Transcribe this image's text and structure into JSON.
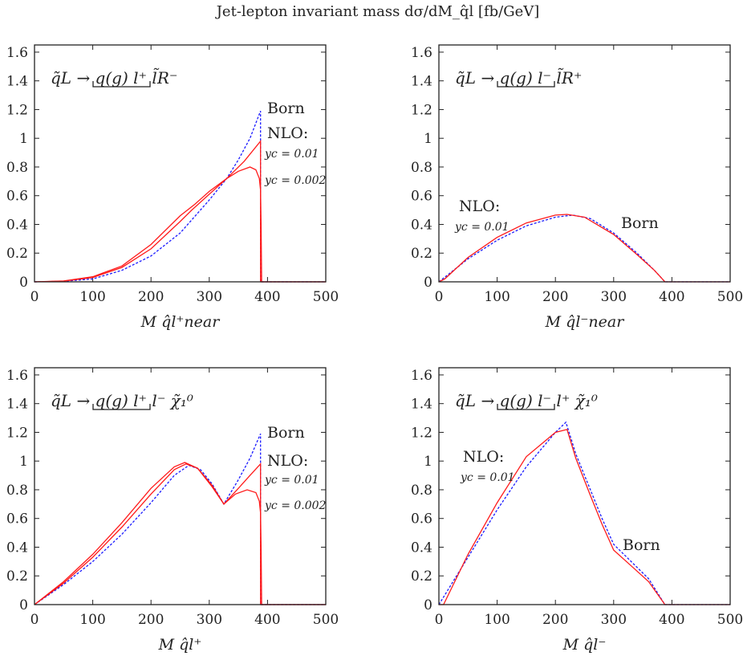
{
  "title": "Jet-lepton invariant mass dσ/dM_q̂l [fb/GeV]",
  "colors": {
    "born": "#1a1aff",
    "nlo": "#ff1a1a",
    "axis": "#222222"
  },
  "chart_data": [
    {
      "type": "line",
      "decay_label": "q̃L → q(g) l⁺ l̃R⁻",
      "xlabel": "M q̂l⁺near",
      "xlim": [
        0,
        500
      ],
      "ylim": [
        0,
        1.65
      ],
      "xticks": [
        "0",
        "100",
        "200",
        "300",
        "400",
        "500"
      ],
      "yticks": [
        "0",
        "0.2",
        "0.4",
        "0.6",
        "0.8",
        "1",
        "1.2",
        "1.4",
        "1.6"
      ],
      "annotations": [
        "Born",
        "NLO:",
        "yc = 0.01",
        "yc = 0.002"
      ],
      "series": [
        {
          "name": "Born",
          "style": "dashed",
          "color": "#1a1aff",
          "x": [
            0,
            50,
            100,
            150,
            200,
            250,
            300,
            330,
            350,
            370,
            388,
            388,
            390,
            500
          ],
          "y": [
            0,
            0.004,
            0.02,
            0.08,
            0.18,
            0.34,
            0.57,
            0.72,
            0.85,
            1.0,
            1.19,
            0,
            0,
            0
          ]
        },
        {
          "name": "yc = 0.01",
          "style": "solid",
          "color": "#ff1a1a",
          "x": [
            0,
            50,
            100,
            150,
            200,
            250,
            270,
            300,
            330,
            360,
            388,
            388,
            390,
            500
          ],
          "y": [
            0,
            0.005,
            0.03,
            0.1,
            0.23,
            0.42,
            0.5,
            0.61,
            0.72,
            0.84,
            0.98,
            0,
            0,
            0
          ]
        },
        {
          "name": "yc = 0.002",
          "style": "solid",
          "color": "#ff1a1a",
          "x": [
            0,
            50,
            100,
            150,
            200,
            250,
            275,
            300,
            330,
            350,
            370,
            380,
            386,
            388,
            389,
            390,
            500
          ],
          "y": [
            0,
            0.006,
            0.035,
            0.11,
            0.26,
            0.46,
            0.54,
            0.63,
            0.72,
            0.77,
            0.8,
            0.78,
            0.72,
            0.64,
            0.4,
            0,
            0
          ]
        }
      ]
    },
    {
      "type": "line",
      "decay_label": "q̃L → q(g) l⁻ l̃R⁺",
      "xlabel": "M q̂l⁻near",
      "xlim": [
        0,
        500
      ],
      "ylim": [
        0,
        1.65
      ],
      "xticks": [
        "0",
        "100",
        "200",
        "300",
        "400",
        "500"
      ],
      "yticks": [
        "0",
        "0.2",
        "0.4",
        "0.6",
        "0.8",
        "1",
        "1.2",
        "1.4",
        "1.6"
      ],
      "annotations": [
        "NLO:",
        "yc = 0.01",
        "Born"
      ],
      "series": [
        {
          "name": "Born",
          "style": "dashed",
          "color": "#1a1aff",
          "x": [
            0,
            50,
            100,
            150,
            200,
            230,
            260,
            300,
            340,
            370,
            388,
            500
          ],
          "y": [
            0,
            0.16,
            0.29,
            0.39,
            0.45,
            0.465,
            0.44,
            0.34,
            0.2,
            0.08,
            0,
            0
          ]
        },
        {
          "name": "yc = 0.01",
          "style": "solid",
          "color": "#ff1a1a",
          "x": [
            0,
            10,
            50,
            100,
            150,
            200,
            220,
            250,
            300,
            340,
            370,
            388,
            500
          ],
          "y": [
            0,
            0.02,
            0.17,
            0.31,
            0.41,
            0.465,
            0.47,
            0.45,
            0.33,
            0.19,
            0.08,
            0,
            0
          ]
        }
      ]
    },
    {
      "type": "line",
      "decay_label": "q̃L → q(g) l⁺ l⁻ χ̃₁⁰",
      "xlabel": "M q̂l⁺",
      "xlim": [
        0,
        500
      ],
      "ylim": [
        0,
        1.65
      ],
      "xticks": [
        "0",
        "100",
        "200",
        "300",
        "400",
        "500"
      ],
      "yticks": [
        "0",
        "0.2",
        "0.4",
        "0.6",
        "0.8",
        "1",
        "1.2",
        "1.4",
        "1.6"
      ],
      "annotations": [
        "Born",
        "NLO:",
        "yc = 0.01",
        "yc = 0.002"
      ],
      "series": [
        {
          "name": "Born",
          "style": "dashed",
          "color": "#1a1aff",
          "x": [
            0,
            50,
            100,
            150,
            200,
            240,
            265,
            285,
            305,
            325,
            350,
            370,
            388,
            388,
            390,
            500
          ],
          "y": [
            0,
            0.14,
            0.3,
            0.49,
            0.71,
            0.9,
            0.97,
            0.94,
            0.84,
            0.7,
            0.87,
            1.02,
            1.19,
            0,
            0,
            0
          ]
        },
        {
          "name": "yc = 0.01",
          "style": "solid",
          "color": "#ff1a1a",
          "x": [
            0,
            50,
            100,
            150,
            200,
            240,
            260,
            280,
            305,
            325,
            350,
            370,
            388,
            388,
            390,
            500
          ],
          "y": [
            0,
            0.15,
            0.33,
            0.54,
            0.77,
            0.94,
            0.98,
            0.95,
            0.83,
            0.7,
            0.81,
            0.9,
            0.98,
            0,
            0,
            0
          ]
        },
        {
          "name": "yc = 0.002",
          "style": "solid",
          "color": "#ff1a1a",
          "x": [
            0,
            50,
            100,
            150,
            200,
            240,
            258,
            280,
            305,
            325,
            345,
            365,
            380,
            386,
            388,
            389,
            390,
            500
          ],
          "y": [
            0,
            0.16,
            0.35,
            0.57,
            0.81,
            0.96,
            0.99,
            0.95,
            0.82,
            0.7,
            0.77,
            0.8,
            0.78,
            0.72,
            0.64,
            0.4,
            0,
            0
          ]
        }
      ]
    },
    {
      "type": "line",
      "decay_label": "q̃L → q(g) l⁻ l⁺ χ̃₁⁰",
      "xlabel": "M q̂l⁻",
      "xlim": [
        0,
        500
      ],
      "ylim": [
        0,
        1.65
      ],
      "xticks": [
        "0",
        "100",
        "200",
        "300",
        "400",
        "500"
      ],
      "yticks": [
        "0",
        "0.2",
        "0.4",
        "0.6",
        "0.8",
        "1",
        "1.2",
        "1.4",
        "1.6"
      ],
      "annotations": [
        "NLO:",
        "yc = 0.01",
        "Born"
      ],
      "series": [
        {
          "name": "Born",
          "style": "dashed",
          "color": "#1a1aff",
          "x": [
            0,
            50,
            100,
            150,
            200,
            218,
            235,
            260,
            280,
            300,
            330,
            360,
            388,
            500
          ],
          "y": [
            0,
            0.33,
            0.66,
            0.96,
            1.2,
            1.27,
            1.05,
            0.8,
            0.6,
            0.42,
            0.3,
            0.18,
            0,
            0
          ]
        },
        {
          "name": "yc = 0.01",
          "style": "solid",
          "color": "#ff1a1a",
          "x": [
            0,
            8,
            50,
            100,
            150,
            200,
            220,
            235,
            260,
            280,
            300,
            330,
            360,
            388,
            500
          ],
          "y": [
            0,
            0,
            0.35,
            0.71,
            1.03,
            1.2,
            1.22,
            1.02,
            0.76,
            0.56,
            0.38,
            0.27,
            0.16,
            0,
            0
          ]
        }
      ]
    }
  ]
}
